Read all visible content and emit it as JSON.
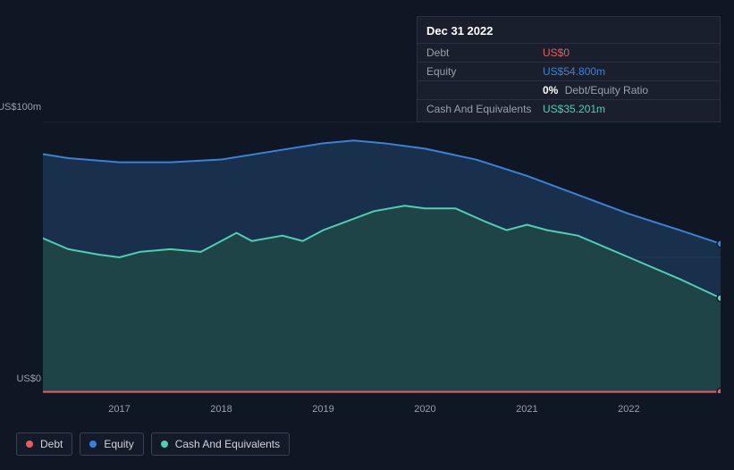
{
  "tooltip": {
    "date": "Dec 31 2022",
    "rows": {
      "debt": {
        "label": "Debt",
        "value": "US$0"
      },
      "equity": {
        "label": "Equity",
        "value": "US$54.800m"
      },
      "ratio": {
        "pct": "0%",
        "label": "Debt/Equity Ratio"
      },
      "cash": {
        "label": "Cash And Equivalents",
        "value": "US$35.201m"
      }
    }
  },
  "chart": {
    "type": "area",
    "background_color": "#0f1725",
    "grid_color": "#2a3040",
    "y_axis": {
      "min": 0,
      "max": 100,
      "labels": {
        "top": "US$100m",
        "bottom": "US$0"
      }
    },
    "x_axis": {
      "years": [
        2017,
        2018,
        2019,
        2020,
        2021,
        2022
      ],
      "label_color": "#9aa0a8",
      "fontsize": 11
    },
    "series": {
      "equity": {
        "color": "#3b82d6",
        "fill": "#1e3a5a",
        "fill_opacity": 0.75,
        "stroke_width": 2,
        "end_dot": true,
        "points": [
          [
            2016.25,
            88
          ],
          [
            2016.5,
            86.5
          ],
          [
            2017.0,
            85
          ],
          [
            2017.5,
            85
          ],
          [
            2018.0,
            86
          ],
          [
            2018.5,
            89
          ],
          [
            2019.0,
            92
          ],
          [
            2019.3,
            93
          ],
          [
            2019.6,
            92
          ],
          [
            2020.0,
            90
          ],
          [
            2020.5,
            86
          ],
          [
            2021.0,
            80
          ],
          [
            2021.5,
            73
          ],
          [
            2022.0,
            66
          ],
          [
            2022.5,
            60
          ],
          [
            2022.9,
            55
          ]
        ]
      },
      "cash": {
        "color": "#4fcfb0",
        "fill": "#1f4a47",
        "fill_opacity": 0.8,
        "stroke_width": 2,
        "end_dot": true,
        "points": [
          [
            2016.25,
            57
          ],
          [
            2016.5,
            53
          ],
          [
            2016.8,
            51
          ],
          [
            2017.0,
            50
          ],
          [
            2017.2,
            52
          ],
          [
            2017.5,
            53
          ],
          [
            2017.8,
            52
          ],
          [
            2018.0,
            56
          ],
          [
            2018.15,
            59
          ],
          [
            2018.3,
            56
          ],
          [
            2018.6,
            58
          ],
          [
            2018.8,
            56
          ],
          [
            2019.0,
            60
          ],
          [
            2019.5,
            67
          ],
          [
            2019.8,
            69
          ],
          [
            2020.0,
            68
          ],
          [
            2020.3,
            68
          ],
          [
            2020.6,
            63
          ],
          [
            2020.8,
            60
          ],
          [
            2021.0,
            62
          ],
          [
            2021.2,
            60
          ],
          [
            2021.5,
            58
          ],
          [
            2022.0,
            50
          ],
          [
            2022.5,
            42
          ],
          [
            2022.9,
            35
          ]
        ]
      },
      "debt": {
        "color": "#e85c5c",
        "fill": "#3a1f1f",
        "fill_opacity": 0.8,
        "stroke_width": 2,
        "end_dot": true,
        "points": [
          [
            2016.25,
            0.5
          ],
          [
            2022.9,
            0.5
          ]
        ]
      }
    },
    "x_domain": [
      2016.25,
      2022.9
    ]
  },
  "legend": {
    "items": [
      {
        "key": "debt",
        "label": "Debt",
        "color": "#e85c5c"
      },
      {
        "key": "equity",
        "label": "Equity",
        "color": "#3b82d6"
      },
      {
        "key": "cash",
        "label": "Cash And Equivalents",
        "color": "#4fcfb0"
      }
    ],
    "border_color": "#3a4050",
    "text_color": "#d0d4da",
    "fontsize": 12
  },
  "colors": {
    "text_muted": "#9aa0a8",
    "text": "#ffffff",
    "tooltip_bg": "#1a1f2e",
    "tooltip_border": "#2a3040"
  }
}
